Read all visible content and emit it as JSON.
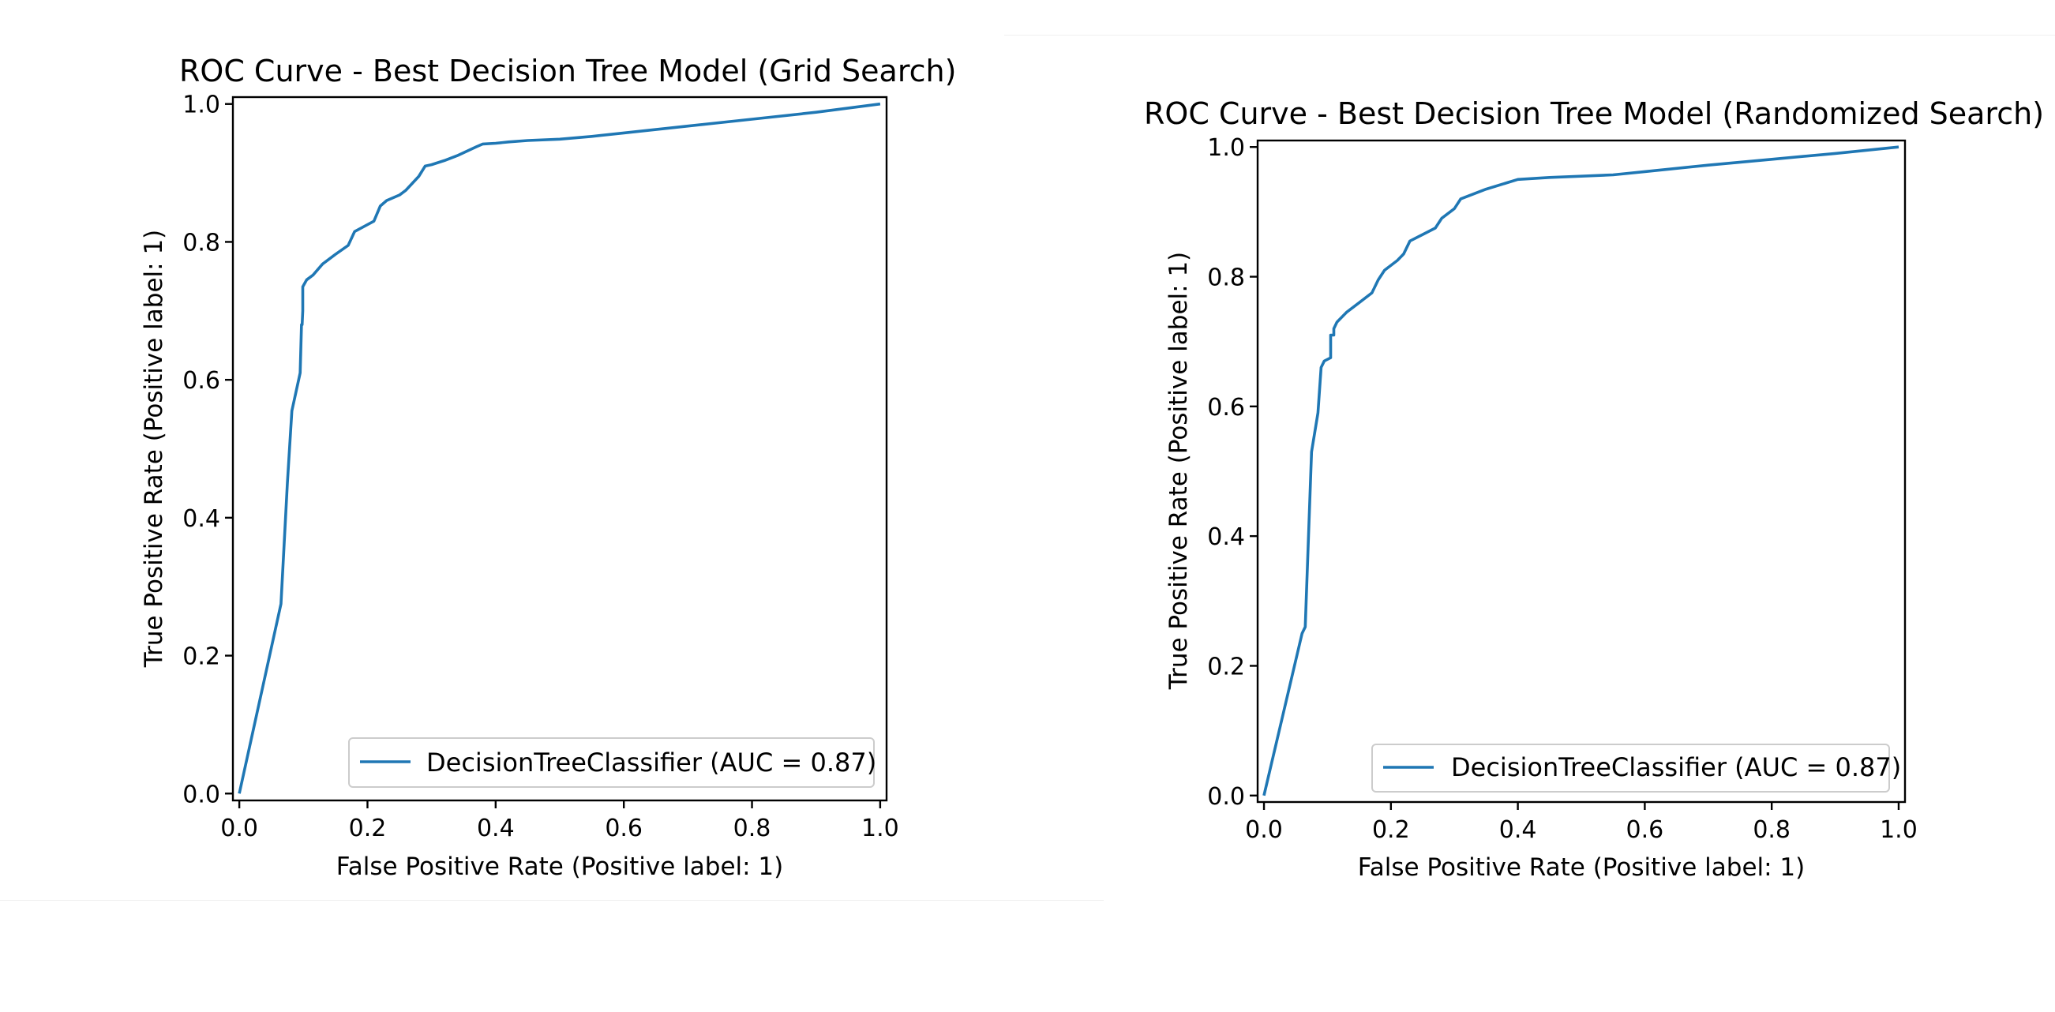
{
  "chart_data": [
    {
      "type": "line",
      "title": "ROC Curve - Best Decision Tree Model (Grid Search)",
      "xlabel": "False Positive Rate (Positive label: 1)",
      "ylabel": "True Positive Rate (Positive label: 1)",
      "xlim": [
        -0.01,
        1.01
      ],
      "ylim": [
        -0.01,
        1.01
      ],
      "xticks": [
        "0.0",
        "0.2",
        "0.4",
        "0.6",
        "0.8",
        "1.0"
      ],
      "yticks": [
        "0.0",
        "0.2",
        "0.4",
        "0.6",
        "0.8",
        "1.0"
      ],
      "grid": false,
      "legend_position": "lower-right",
      "series": [
        {
          "name": "DecisionTreeClassifier (AUC = 0.87)",
          "color": "#1f77b4",
          "x": [
            0.0,
            0.065,
            0.075,
            0.082,
            0.095,
            0.097,
            0.098,
            0.099,
            0.099,
            0.105,
            0.115,
            0.13,
            0.15,
            0.17,
            0.18,
            0.21,
            0.22,
            0.23,
            0.25,
            0.26,
            0.28,
            0.29,
            0.3,
            0.32,
            0.34,
            0.37,
            0.38,
            0.4,
            0.42,
            0.45,
            0.5,
            0.55,
            0.6,
            0.65,
            0.7,
            0.8,
            0.9,
            1.0
          ],
          "y": [
            0.0,
            0.275,
            0.45,
            0.555,
            0.61,
            0.68,
            0.68,
            0.7,
            0.735,
            0.745,
            0.752,
            0.768,
            0.782,
            0.795,
            0.815,
            0.83,
            0.852,
            0.86,
            0.868,
            0.875,
            0.895,
            0.91,
            0.912,
            0.918,
            0.925,
            0.938,
            0.942,
            0.943,
            0.945,
            0.947,
            0.949,
            0.953,
            0.958,
            0.963,
            0.968,
            0.978,
            0.988,
            1.0
          ]
        }
      ]
    },
    {
      "type": "line",
      "title": "ROC Curve - Best Decision Tree Model (Randomized Search)",
      "xlabel": "False Positive Rate (Positive label: 1)",
      "ylabel": "True Positive Rate (Positive label: 1)",
      "xlim": [
        -0.01,
        1.01
      ],
      "ylim": [
        -0.01,
        1.01
      ],
      "xticks": [
        "0.0",
        "0.2",
        "0.4",
        "0.6",
        "0.8",
        "1.0"
      ],
      "yticks": [
        "0.0",
        "0.2",
        "0.4",
        "0.6",
        "0.8",
        "1.0"
      ],
      "grid": false,
      "legend_position": "lower-right",
      "series": [
        {
          "name": "DecisionTreeClassifier (AUC = 0.87)",
          "color": "#1f77b4",
          "x": [
            0.0,
            0.06,
            0.065,
            0.075,
            0.085,
            0.09,
            0.09,
            0.095,
            0.105,
            0.105,
            0.11,
            0.11,
            0.115,
            0.13,
            0.15,
            0.17,
            0.18,
            0.19,
            0.21,
            0.22,
            0.23,
            0.25,
            0.27,
            0.28,
            0.3,
            0.31,
            0.35,
            0.4,
            0.45,
            0.5,
            0.55,
            0.6,
            0.7,
            0.8,
            0.9,
            1.0
          ],
          "y": [
            0.0,
            0.25,
            0.26,
            0.53,
            0.59,
            0.66,
            0.66,
            0.67,
            0.675,
            0.71,
            0.71,
            0.72,
            0.73,
            0.745,
            0.76,
            0.775,
            0.795,
            0.81,
            0.825,
            0.835,
            0.855,
            0.865,
            0.875,
            0.89,
            0.905,
            0.92,
            0.935,
            0.95,
            0.953,
            0.955,
            0.957,
            0.962,
            0.972,
            0.981,
            0.99,
            1.0
          ]
        }
      ]
    }
  ]
}
